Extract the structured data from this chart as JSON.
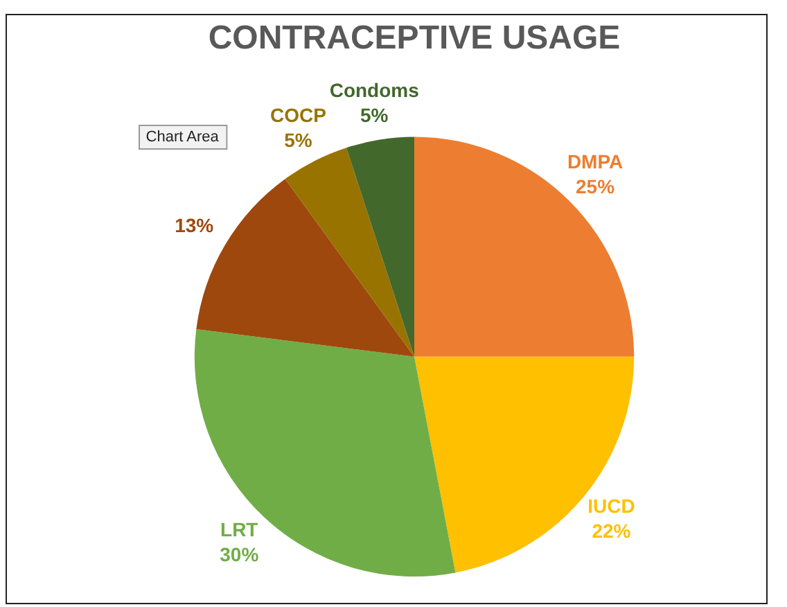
{
  "chart_data": {
    "type": "pie",
    "title": "CONTRACEPTIVE USAGE",
    "categories": [
      "DMPA",
      "IUCD",
      "LRT",
      null,
      "COCP",
      "Condoms"
    ],
    "values": [
      25,
      22,
      30,
      13,
      5,
      5
    ],
    "value_labels": [
      "25%",
      "22%",
      "30%",
      "13%",
      "5%",
      "5%"
    ],
    "colors": [
      "#ed7d31",
      "#ffc000",
      "#70ad47",
      "#9e480e",
      "#997300",
      "#43682b"
    ],
    "legend": false,
    "annotations": [
      "Chart Area"
    ]
  }
}
